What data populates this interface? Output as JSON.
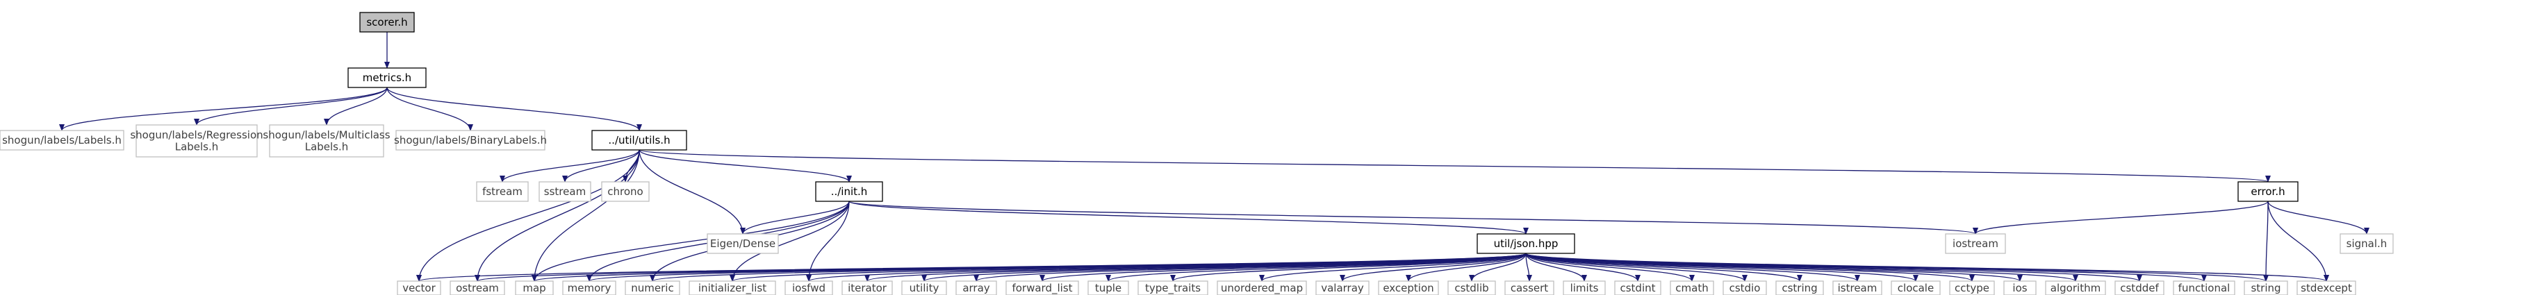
{
  "colors": {
    "edge": "#191970",
    "internal_border": "#000000",
    "external_border": "#bfbfbf",
    "external_text": "#404040",
    "root_fill": "#bfbfbf",
    "node_fill": "#ffffff"
  },
  "nodes": [
    {
      "id": "scorer_h",
      "lines": [
        "scorer.h"
      ],
      "kind": "root"
    },
    {
      "id": "metrics_h",
      "lines": [
        "metrics.h"
      ],
      "kind": "internal"
    },
    {
      "id": "labels_h",
      "lines": [
        "shogun/labels/Labels.h"
      ],
      "kind": "external"
    },
    {
      "id": "regression_labels_h",
      "lines": [
        "shogun/labels/Regression",
        "Labels.h"
      ],
      "kind": "external"
    },
    {
      "id": "multiclass_labels_h",
      "lines": [
        "shogun/labels/Multiclass",
        "Labels.h"
      ],
      "kind": "external"
    },
    {
      "id": "binary_labels_h",
      "lines": [
        "shogun/labels/BinaryLabels.h"
      ],
      "kind": "external"
    },
    {
      "id": "utils_h",
      "lines": [
        "../util/utils.h"
      ],
      "kind": "internal"
    },
    {
      "id": "fstream",
      "lines": [
        "fstream"
      ],
      "kind": "external"
    },
    {
      "id": "sstream",
      "lines": [
        "sstream"
      ],
      "kind": "external"
    },
    {
      "id": "chrono",
      "lines": [
        "chrono"
      ],
      "kind": "external"
    },
    {
      "id": "init_h",
      "lines": [
        "../init.h"
      ],
      "kind": "internal"
    },
    {
      "id": "error_h",
      "lines": [
        "error.h"
      ],
      "kind": "internal"
    },
    {
      "id": "eigen_dense",
      "lines": [
        "Eigen/Dense"
      ],
      "kind": "external"
    },
    {
      "id": "json_hpp",
      "lines": [
        "util/json.hpp"
      ],
      "kind": "internal"
    },
    {
      "id": "iostream",
      "lines": [
        "iostream"
      ],
      "kind": "external"
    },
    {
      "id": "signal_h",
      "lines": [
        "signal.h"
      ],
      "kind": "external"
    },
    {
      "id": "vector",
      "lines": [
        "vector"
      ],
      "kind": "external"
    },
    {
      "id": "ostream",
      "lines": [
        "ostream"
      ],
      "kind": "external"
    },
    {
      "id": "map",
      "lines": [
        "map"
      ],
      "kind": "external"
    },
    {
      "id": "memory",
      "lines": [
        "memory"
      ],
      "kind": "external"
    },
    {
      "id": "numeric",
      "lines": [
        "numeric"
      ],
      "kind": "external"
    },
    {
      "id": "initializer_list",
      "lines": [
        "initializer_list"
      ],
      "kind": "external"
    },
    {
      "id": "iosfwd",
      "lines": [
        "iosfwd"
      ],
      "kind": "external"
    },
    {
      "id": "iterator",
      "lines": [
        "iterator"
      ],
      "kind": "external"
    },
    {
      "id": "utility",
      "lines": [
        "utility"
      ],
      "kind": "external"
    },
    {
      "id": "array",
      "lines": [
        "array"
      ],
      "kind": "external"
    },
    {
      "id": "forward_list",
      "lines": [
        "forward_list"
      ],
      "kind": "external"
    },
    {
      "id": "tuple",
      "lines": [
        "tuple"
      ],
      "kind": "external"
    },
    {
      "id": "type_traits",
      "lines": [
        "type_traits"
      ],
      "kind": "external"
    },
    {
      "id": "unordered_map",
      "lines": [
        "unordered_map"
      ],
      "kind": "external"
    },
    {
      "id": "valarray",
      "lines": [
        "valarray"
      ],
      "kind": "external"
    },
    {
      "id": "exception",
      "lines": [
        "exception"
      ],
      "kind": "external"
    },
    {
      "id": "cstdlib",
      "lines": [
        "cstdlib"
      ],
      "kind": "external"
    },
    {
      "id": "cassert",
      "lines": [
        "cassert"
      ],
      "kind": "external"
    },
    {
      "id": "limits",
      "lines": [
        "limits"
      ],
      "kind": "external"
    },
    {
      "id": "cstdint",
      "lines": [
        "cstdint"
      ],
      "kind": "external"
    },
    {
      "id": "cmath",
      "lines": [
        "cmath"
      ],
      "kind": "external"
    },
    {
      "id": "cstdio",
      "lines": [
        "cstdio"
      ],
      "kind": "external"
    },
    {
      "id": "cstring",
      "lines": [
        "cstring"
      ],
      "kind": "external"
    },
    {
      "id": "istream",
      "lines": [
        "istream"
      ],
      "kind": "external"
    },
    {
      "id": "clocale",
      "lines": [
        "clocale"
      ],
      "kind": "external"
    },
    {
      "id": "cctype",
      "lines": [
        "cctype"
      ],
      "kind": "external"
    },
    {
      "id": "ios",
      "lines": [
        "ios"
      ],
      "kind": "external"
    },
    {
      "id": "algorithm",
      "lines": [
        "algorithm"
      ],
      "kind": "external"
    },
    {
      "id": "cstddef",
      "lines": [
        "cstddef"
      ],
      "kind": "external"
    },
    {
      "id": "functional",
      "lines": [
        "functional"
      ],
      "kind": "external"
    },
    {
      "id": "string",
      "lines": [
        "string"
      ],
      "kind": "external"
    },
    {
      "id": "stdexcept",
      "lines": [
        "stdexcept"
      ],
      "kind": "external"
    }
  ],
  "edges": [
    [
      "scorer_h",
      "metrics_h"
    ],
    [
      "metrics_h",
      "labels_h"
    ],
    [
      "metrics_h",
      "regression_labels_h"
    ],
    [
      "metrics_h",
      "multiclass_labels_h"
    ],
    [
      "metrics_h",
      "binary_labels_h"
    ],
    [
      "metrics_h",
      "utils_h"
    ],
    [
      "utils_h",
      "fstream"
    ],
    [
      "utils_h",
      "sstream"
    ],
    [
      "utils_h",
      "chrono"
    ],
    [
      "utils_h",
      "init_h"
    ],
    [
      "utils_h",
      "error_h"
    ],
    [
      "utils_h",
      "eigen_dense"
    ],
    [
      "utils_h",
      "vector"
    ],
    [
      "utils_h",
      "ostream"
    ],
    [
      "utils_h",
      "map"
    ],
    [
      "init_h",
      "eigen_dense"
    ],
    [
      "init_h",
      "json_hpp"
    ],
    [
      "init_h",
      "iostream"
    ],
    [
      "init_h",
      "map"
    ],
    [
      "init_h",
      "memory"
    ],
    [
      "init_h",
      "numeric"
    ],
    [
      "init_h",
      "initializer_list"
    ],
    [
      "init_h",
      "iosfwd"
    ],
    [
      "error_h",
      "iostream"
    ],
    [
      "error_h",
      "signal_h"
    ],
    [
      "error_h",
      "string"
    ],
    [
      "error_h",
      "stdexcept"
    ],
    [
      "json_hpp",
      "vector"
    ],
    [
      "json_hpp",
      "ostream"
    ],
    [
      "json_hpp",
      "map"
    ],
    [
      "json_hpp",
      "memory"
    ],
    [
      "json_hpp",
      "numeric"
    ],
    [
      "json_hpp",
      "initializer_list"
    ],
    [
      "json_hpp",
      "iosfwd"
    ],
    [
      "json_hpp",
      "iterator"
    ],
    [
      "json_hpp",
      "utility"
    ],
    [
      "json_hpp",
      "array"
    ],
    [
      "json_hpp",
      "forward_list"
    ],
    [
      "json_hpp",
      "tuple"
    ],
    [
      "json_hpp",
      "type_traits"
    ],
    [
      "json_hpp",
      "unordered_map"
    ],
    [
      "json_hpp",
      "valarray"
    ],
    [
      "json_hpp",
      "exception"
    ],
    [
      "json_hpp",
      "cstdlib"
    ],
    [
      "json_hpp",
      "cassert"
    ],
    [
      "json_hpp",
      "limits"
    ],
    [
      "json_hpp",
      "cstdint"
    ],
    [
      "json_hpp",
      "cmath"
    ],
    [
      "json_hpp",
      "cstdio"
    ],
    [
      "json_hpp",
      "cstring"
    ],
    [
      "json_hpp",
      "istream"
    ],
    [
      "json_hpp",
      "clocale"
    ],
    [
      "json_hpp",
      "cctype"
    ],
    [
      "json_hpp",
      "ios"
    ],
    [
      "json_hpp",
      "algorithm"
    ],
    [
      "json_hpp",
      "cstddef"
    ],
    [
      "json_hpp",
      "functional"
    ],
    [
      "json_hpp",
      "string"
    ],
    [
      "json_hpp",
      "stdexcept"
    ]
  ]
}
